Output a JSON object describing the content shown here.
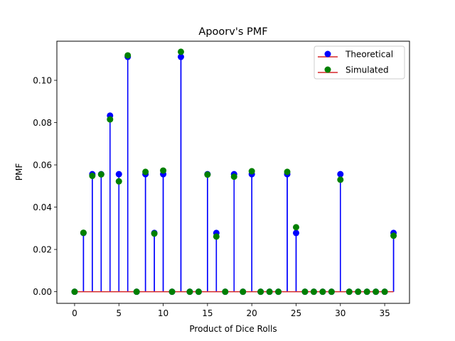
{
  "chart_data": {
    "type": "stem",
    "title": "Apoorv's PMF",
    "xlabel": "Product of Dice Rolls",
    "ylabel": "PMF",
    "xlim": [
      -2,
      37.8
    ],
    "ylim": [
      -0.0055,
      0.1185
    ],
    "xticks": [
      0,
      5,
      10,
      15,
      20,
      25,
      30,
      35
    ],
    "xtick_labels": [
      "0",
      "5",
      "10",
      "15",
      "20",
      "25",
      "30",
      "35"
    ],
    "yticks": [
      0.0,
      0.02,
      0.04,
      0.06,
      0.08,
      0.1
    ],
    "ytick_labels": [
      "0.00",
      "0.02",
      "0.04",
      "0.06",
      "0.08",
      "0.10"
    ],
    "grid": false,
    "legend_position": "top-right",
    "x": [
      0,
      1,
      2,
      3,
      4,
      5,
      6,
      7,
      8,
      9,
      10,
      11,
      12,
      13,
      14,
      15,
      16,
      17,
      18,
      19,
      20,
      21,
      22,
      23,
      24,
      25,
      26,
      27,
      28,
      29,
      30,
      31,
      32,
      33,
      34,
      35,
      36
    ],
    "series": [
      {
        "name": "Theoretical",
        "marker_color": "#0000ff",
        "stem_color": "#0000ff",
        "values": [
          0,
          0.0278,
          0.0556,
          0.0556,
          0.0833,
          0.0556,
          0.1111,
          0,
          0.0556,
          0.0278,
          0.0556,
          0,
          0.1111,
          0,
          0,
          0.0556,
          0.0278,
          0,
          0.0556,
          0,
          0.0556,
          0,
          0,
          0,
          0.0556,
          0.0278,
          0,
          0,
          0,
          0,
          0.0556,
          0,
          0,
          0,
          0,
          0,
          0.0278
        ]
      },
      {
        "name": "Simulated",
        "marker_color": "#008000",
        "stem_color": "#0000ff",
        "values": [
          0,
          0.0279,
          0.0548,
          0.0555,
          0.0815,
          0.0522,
          0.1118,
          0,
          0.0567,
          0.0275,
          0.0573,
          0,
          0.1135,
          0,
          0,
          0.0554,
          0.0261,
          0,
          0.0544,
          0,
          0.057,
          0,
          0,
          0,
          0.0567,
          0.0305,
          0,
          0,
          0,
          0,
          0.053,
          0,
          0,
          0,
          0,
          0,
          0.0265
        ]
      }
    ],
    "baseline": {
      "value": 0,
      "color": "#d62728"
    }
  }
}
